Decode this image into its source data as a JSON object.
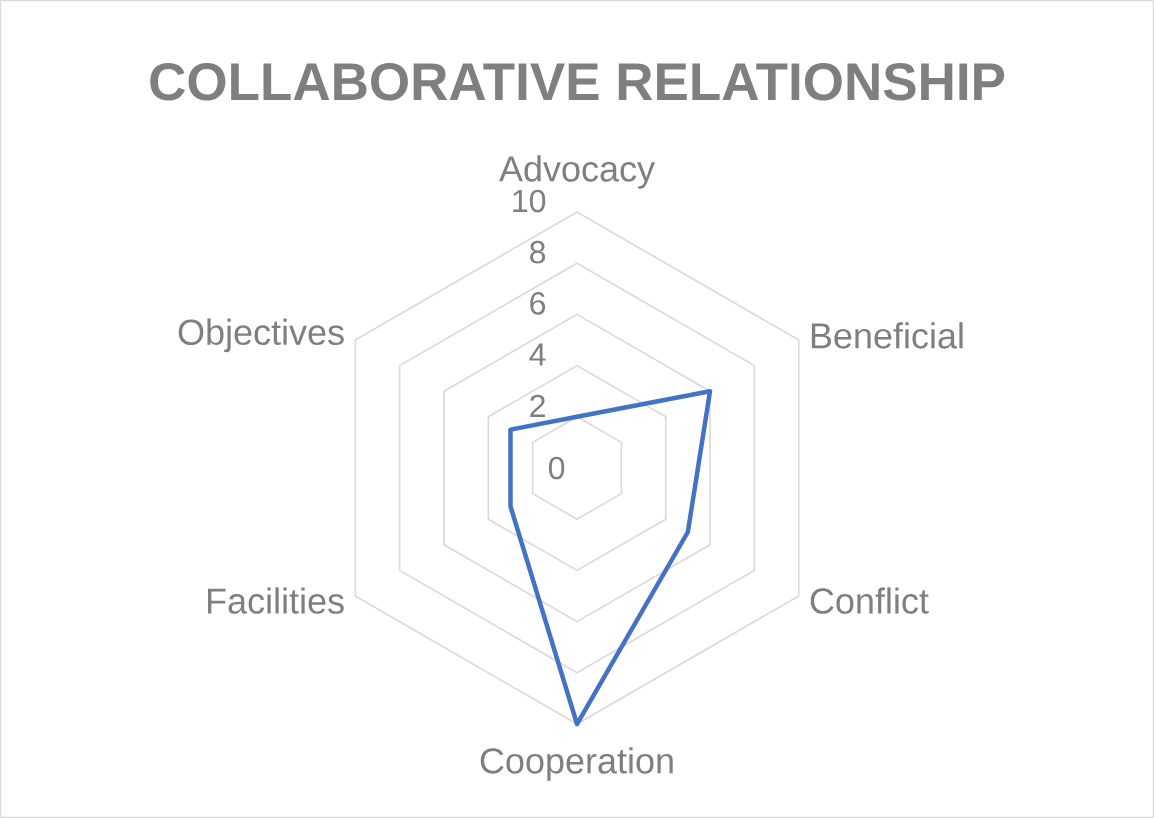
{
  "chart_data": {
    "type": "radar",
    "title": "COLLABORATIVE RELATIONSHIP",
    "categories": [
      "Advocacy",
      "Beneficial",
      "Conflict",
      "Cooperation",
      "Facilities",
      "Objectives"
    ],
    "series": [
      {
        "color": "#4472c4",
        "values": [
          2,
          6,
          5,
          10,
          3,
          3
        ]
      }
    ],
    "ylim": [
      0,
      10
    ],
    "yticks": [
      0,
      2,
      4,
      6,
      8,
      10
    ],
    "grid": true
  }
}
